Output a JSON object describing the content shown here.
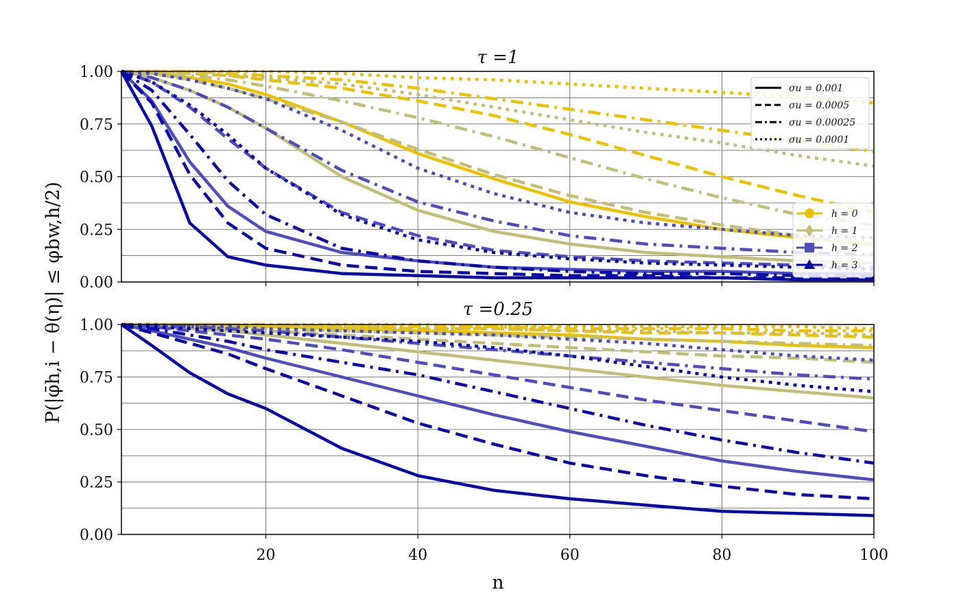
{
  "chart_data": [
    {
      "type": "line",
      "title": "τ =1",
      "xlabel": "",
      "ylabel": "P(|φ̄h,i − θ(η)| ≤ φbw,h/2)",
      "xlim": [
        1,
        100
      ],
      "ylim": [
        0,
        1
      ],
      "xticks": [
        "20",
        "40",
        "60",
        "80",
        "100"
      ],
      "xtick_values": [
        20,
        40,
        60,
        80,
        100
      ],
      "yticks": [
        "0.00",
        "0.25",
        "0.50",
        "0.75",
        "1.00"
      ],
      "ytick_values": [
        0,
        0.25,
        0.5,
        0.75,
        1.0
      ],
      "grid": true,
      "colors": {
        "h0": "#ecc200",
        "h1": "#c3bd78",
        "h2": "#4d4dc0",
        "h3": "#0a0aa8"
      },
      "legend_sigma": {
        "placement": "top-right",
        "entries": [
          {
            "label": "σu = 0.001",
            "style": "solid"
          },
          {
            "label": "σu = 0.0005",
            "style": "dashed"
          },
          {
            "label": "σu = 0.00025",
            "style": "dashdot"
          },
          {
            "label": "σu = 0.0001",
            "style": "dotted"
          }
        ]
      },
      "legend_h": {
        "placement": "center-right",
        "entries": [
          {
            "label": "h = 0",
            "marker": "circle",
            "color": "#ecc200"
          },
          {
            "label": "h = 1",
            "marker": "diamond",
            "color": "#c3bd78"
          },
          {
            "label": "h = 2",
            "marker": "square",
            "color": "#4d4dc0"
          },
          {
            "label": "h = 3",
            "marker": "triangle",
            "color": "#0a0aa8"
          }
        ]
      },
      "x": [
        1,
        5,
        10,
        15,
        20,
        30,
        40,
        50,
        60,
        70,
        80,
        90,
        100
      ],
      "series": [
        {
          "h": 0,
          "style": "solid",
          "values": [
            1.0,
            0.99,
            0.97,
            0.94,
            0.89,
            0.76,
            0.61,
            0.49,
            0.38,
            0.31,
            0.25,
            0.21,
            0.18
          ]
        },
        {
          "h": 0,
          "style": "dashed",
          "values": [
            1.0,
            1.0,
            0.99,
            0.98,
            0.96,
            0.92,
            0.86,
            0.79,
            0.7,
            0.6,
            0.5,
            0.41,
            0.33
          ]
        },
        {
          "h": 0,
          "style": "dashdot",
          "values": [
            1.0,
            1.0,
            1.0,
            0.99,
            0.98,
            0.96,
            0.92,
            0.87,
            0.82,
            0.77,
            0.72,
            0.67,
            0.62
          ]
        },
        {
          "h": 0,
          "style": "dotted",
          "values": [
            1.0,
            1.0,
            1.0,
            1.0,
            1.0,
            0.99,
            0.97,
            0.96,
            0.94,
            0.92,
            0.9,
            0.88,
            0.85
          ]
        },
        {
          "h": 1,
          "style": "solid",
          "values": [
            1.0,
            0.97,
            0.91,
            0.83,
            0.73,
            0.5,
            0.34,
            0.24,
            0.18,
            0.14,
            0.12,
            0.1,
            0.09
          ]
        },
        {
          "h": 1,
          "style": "dashed",
          "values": [
            1.0,
            0.99,
            0.96,
            0.92,
            0.87,
            0.76,
            0.63,
            0.51,
            0.41,
            0.33,
            0.27,
            0.22,
            0.17
          ]
        },
        {
          "h": 1,
          "style": "dashdot",
          "values": [
            1.0,
            0.99,
            0.98,
            0.96,
            0.93,
            0.86,
            0.78,
            0.69,
            0.59,
            0.49,
            0.4,
            0.32,
            0.27
          ]
        },
        {
          "h": 1,
          "style": "dotted",
          "values": [
            1.0,
            1.0,
            0.99,
            0.98,
            0.97,
            0.94,
            0.89,
            0.83,
            0.77,
            0.71,
            0.66,
            0.6,
            0.55
          ]
        },
        {
          "h": 2,
          "style": "solid",
          "values": [
            1.0,
            0.86,
            0.57,
            0.36,
            0.24,
            0.14,
            0.1,
            0.07,
            0.06,
            0.05,
            0.05,
            0.04,
            0.04
          ]
        },
        {
          "h": 2,
          "style": "dashed",
          "values": [
            1.0,
            0.95,
            0.83,
            0.68,
            0.54,
            0.33,
            0.22,
            0.15,
            0.12,
            0.1,
            0.09,
            0.08,
            0.07
          ]
        },
        {
          "h": 2,
          "style": "dashdot",
          "values": [
            1.0,
            0.97,
            0.91,
            0.83,
            0.73,
            0.53,
            0.38,
            0.29,
            0.22,
            0.18,
            0.16,
            0.14,
            0.13
          ]
        },
        {
          "h": 2,
          "style": "dotted",
          "values": [
            1.0,
            0.99,
            0.96,
            0.92,
            0.87,
            0.72,
            0.54,
            0.42,
            0.33,
            0.28,
            0.25,
            0.22,
            0.21
          ]
        },
        {
          "h": 3,
          "style": "solid",
          "values": [
            1.0,
            0.74,
            0.28,
            0.12,
            0.08,
            0.04,
            0.03,
            0.02,
            0.02,
            0.02,
            0.02,
            0.01,
            0.01
          ]
        },
        {
          "h": 3,
          "style": "dashed",
          "values": [
            1.0,
            0.85,
            0.51,
            0.28,
            0.16,
            0.08,
            0.05,
            0.04,
            0.03,
            0.03,
            0.02,
            0.02,
            0.02
          ]
        },
        {
          "h": 3,
          "style": "dashdot",
          "values": [
            1.0,
            0.91,
            0.7,
            0.48,
            0.32,
            0.16,
            0.1,
            0.07,
            0.05,
            0.04,
            0.04,
            0.03,
            0.03
          ]
        },
        {
          "h": 3,
          "style": "dotted",
          "values": [
            1.0,
            0.95,
            0.84,
            0.7,
            0.54,
            0.32,
            0.2,
            0.14,
            0.11,
            0.09,
            0.08,
            0.07,
            0.06
          ]
        }
      ]
    },
    {
      "type": "line",
      "title": "τ =0.25",
      "xlabel": "n",
      "ylabel": "P(|φ̄h,i − θ(η)| ≤ φbw,h/2)",
      "xlim": [
        1,
        100
      ],
      "ylim": [
        0,
        1
      ],
      "xticks": [
        "20",
        "40",
        "60",
        "80",
        "100"
      ],
      "xtick_values": [
        20,
        40,
        60,
        80,
        100
      ],
      "yticks": [
        "0.00",
        "0.25",
        "0.50",
        "0.75",
        "1.00"
      ],
      "ytick_values": [
        0,
        0.25,
        0.5,
        0.75,
        1.0
      ],
      "grid": true,
      "x": [
        1,
        5,
        10,
        15,
        20,
        30,
        40,
        50,
        60,
        70,
        80,
        90,
        100
      ],
      "series": [
        {
          "h": 0,
          "style": "solid",
          "values": [
            1.0,
            1.0,
            1.0,
            0.99,
            0.99,
            0.98,
            0.97,
            0.96,
            0.95,
            0.93,
            0.92,
            0.9,
            0.89
          ]
        },
        {
          "h": 0,
          "style": "dashed",
          "values": [
            1.0,
            1.0,
            1.0,
            1.0,
            0.99,
            0.99,
            0.98,
            0.98,
            0.97,
            0.96,
            0.96,
            0.95,
            0.94
          ]
        },
        {
          "h": 0,
          "style": "dashdot",
          "values": [
            1.0,
            1.0,
            1.0,
            1.0,
            1.0,
            0.99,
            0.99,
            0.99,
            0.98,
            0.98,
            0.98,
            0.97,
            0.97
          ]
        },
        {
          "h": 0,
          "style": "dotted",
          "values": [
            1.0,
            1.0,
            1.0,
            1.0,
            1.0,
            1.0,
            1.0,
            0.99,
            0.99,
            0.99,
            0.99,
            0.99,
            0.98
          ]
        },
        {
          "h": 1,
          "style": "solid",
          "values": [
            1.0,
            0.99,
            0.98,
            0.97,
            0.95,
            0.91,
            0.87,
            0.83,
            0.79,
            0.75,
            0.71,
            0.68,
            0.65
          ]
        },
        {
          "h": 1,
          "style": "dashed",
          "values": [
            1.0,
            1.0,
            0.99,
            0.98,
            0.97,
            0.95,
            0.93,
            0.91,
            0.89,
            0.87,
            0.85,
            0.84,
            0.82
          ]
        },
        {
          "h": 1,
          "style": "dashdot",
          "values": [
            1.0,
            1.0,
            0.99,
            0.99,
            0.98,
            0.97,
            0.96,
            0.95,
            0.94,
            0.93,
            0.92,
            0.91,
            0.9
          ]
        },
        {
          "h": 1,
          "style": "dotted",
          "values": [
            1.0,
            1.0,
            1.0,
            1.0,
            0.99,
            0.99,
            0.98,
            0.98,
            0.97,
            0.97,
            0.96,
            0.96,
            0.95
          ]
        },
        {
          "h": 2,
          "style": "solid",
          "values": [
            1.0,
            0.97,
            0.93,
            0.89,
            0.84,
            0.75,
            0.66,
            0.57,
            0.49,
            0.42,
            0.35,
            0.3,
            0.26
          ]
        },
        {
          "h": 2,
          "style": "dashed",
          "values": [
            1.0,
            0.99,
            0.97,
            0.95,
            0.93,
            0.88,
            0.82,
            0.76,
            0.7,
            0.64,
            0.59,
            0.54,
            0.49
          ]
        },
        {
          "h": 2,
          "style": "dashdot",
          "values": [
            1.0,
            0.99,
            0.99,
            0.98,
            0.97,
            0.94,
            0.91,
            0.88,
            0.85,
            0.82,
            0.79,
            0.76,
            0.74
          ]
        },
        {
          "h": 2,
          "style": "dotted",
          "values": [
            1.0,
            1.0,
            0.99,
            0.99,
            0.98,
            0.97,
            0.96,
            0.95,
            0.93,
            0.91,
            0.88,
            0.85,
            0.83
          ]
        },
        {
          "h": 3,
          "style": "solid",
          "values": [
            1.0,
            0.9,
            0.77,
            0.67,
            0.6,
            0.41,
            0.28,
            0.21,
            0.17,
            0.14,
            0.11,
            0.1,
            0.09
          ]
        },
        {
          "h": 3,
          "style": "dashed",
          "values": [
            1.0,
            0.96,
            0.91,
            0.86,
            0.79,
            0.66,
            0.53,
            0.43,
            0.34,
            0.28,
            0.23,
            0.19,
            0.17
          ]
        },
        {
          "h": 3,
          "style": "dashdot",
          "values": [
            1.0,
            0.98,
            0.95,
            0.92,
            0.88,
            0.82,
            0.76,
            0.68,
            0.6,
            0.52,
            0.45,
            0.39,
            0.34
          ]
        },
        {
          "h": 3,
          "style": "dotted",
          "values": [
            1.0,
            0.99,
            0.98,
            0.97,
            0.96,
            0.94,
            0.92,
            0.89,
            0.85,
            0.8,
            0.75,
            0.71,
            0.68
          ]
        }
      ]
    }
  ]
}
